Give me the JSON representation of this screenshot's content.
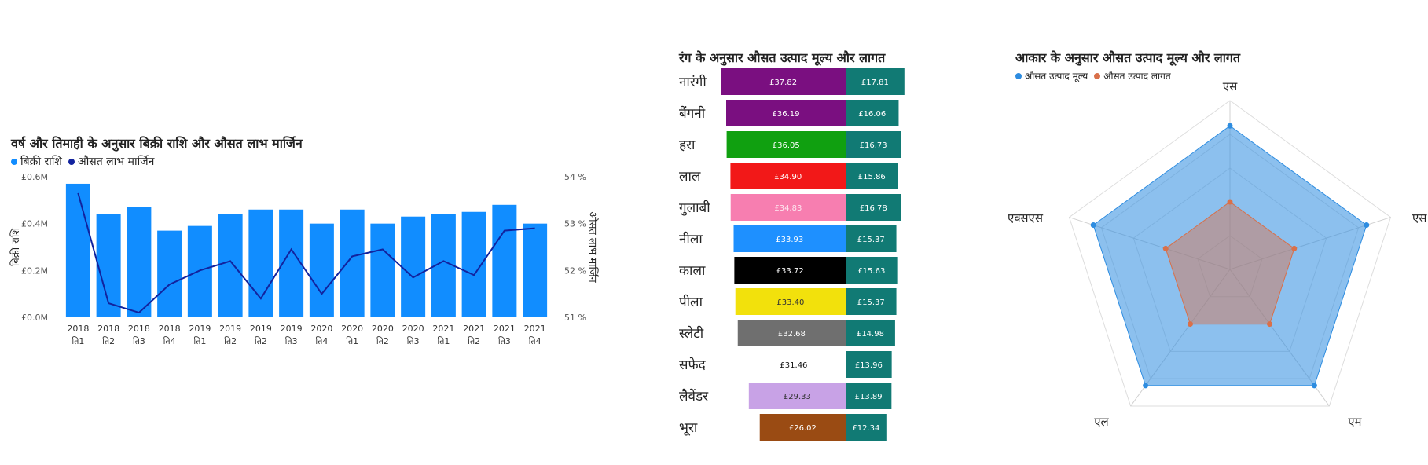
{
  "chart_data": [
    {
      "type": "bar",
      "title": "वर्ष और तिमाही के अनुसार बिक्री राशि और औसत लाभ मार्जिन",
      "legend": [
        "बिक्री राशि",
        "औसत लाभ मार्जिन"
      ],
      "legend_colors": [
        "#118DFF",
        "#12239E"
      ],
      "ylabel": "बिक्री राशि",
      "y2label": "औसत लाभ मार्जिन",
      "categories": [
        [
          "2018",
          "ति1"
        ],
        [
          "2018",
          "ति2"
        ],
        [
          "2018",
          "ति3"
        ],
        [
          "2018",
          "ति4"
        ],
        [
          "2019",
          "ति1"
        ],
        [
          "2019",
          "ति2"
        ],
        [
          "2019",
          "ति2"
        ],
        [
          "2019",
          "ति3"
        ],
        [
          "2020",
          "ति4"
        ],
        [
          "2020",
          "ति1"
        ],
        [
          "2020",
          "ति2"
        ],
        [
          "2020",
          "ति3"
        ],
        [
          "2021",
          "ति1"
        ],
        [
          "2021",
          "ति2"
        ],
        [
          "2021",
          "ति3"
        ],
        [
          "2021",
          "ति4"
        ]
      ],
      "series": [
        {
          "name": "बिक्री राशि",
          "type": "bar",
          "values": [
            0.57,
            0.44,
            0.47,
            0.37,
            0.39,
            0.44,
            0.46,
            0.46,
            0.4,
            0.46,
            0.4,
            0.43,
            0.44,
            0.45,
            0.48,
            0.4
          ]
        },
        {
          "name": "औसत लाभ मार्जिन",
          "type": "line",
          "axis": "right",
          "values": [
            53.65,
            51.3,
            51.1,
            51.7,
            52.0,
            52.2,
            51.4,
            52.45,
            51.5,
            52.3,
            52.45,
            51.85,
            52.2,
            51.9,
            52.85,
            52.9
          ]
        }
      ],
      "ylim": [
        0,
        0.6
      ],
      "yticks": [
        "£0.0M",
        "£0.2M",
        "£0.4M",
        "£0.6M"
      ],
      "y2lim": [
        51,
        54
      ],
      "y2ticks": [
        "51 %",
        "52 %",
        "53 %",
        "54 %"
      ]
    },
    {
      "type": "bar",
      "orientation": "horizontal-stacked",
      "title": "रंग के अनुसार औसत उत्पाद मूल्य और लागत",
      "categories": [
        "नारंगी",
        "बैंगनी",
        "हरा",
        "लाल",
        "गुलाबी",
        "नीला",
        "काला",
        "पीला",
        "स्लेटी",
        "सफेद",
        "लैवेंडर",
        "भूरा"
      ],
      "series": [
        {
          "values": [
            37.82,
            36.19,
            36.05,
            34.9,
            34.83,
            33.93,
            33.72,
            33.4,
            32.68,
            31.46,
            29.33,
            26.02
          ],
          "labels": [
            "£37.82",
            "£36.19",
            "£36.05",
            "£34.90",
            "£34.83",
            "£33.93",
            "£33.72",
            "£33.40",
            "£32.68",
            "£31.46",
            "£29.33",
            "£26.02"
          ],
          "colors": [
            "#7A0F80",
            "#7A0F80",
            "#10A010",
            "#F21818",
            "#F77EB0",
            "#1E90FF",
            "#000000",
            "#F2E10C",
            "#6F6F6F",
            "#FFFFFF",
            "#C8A2E6",
            "#9A4B13"
          ]
        },
        {
          "values": [
            17.81,
            16.06,
            16.73,
            15.86,
            16.78,
            15.37,
            15.63,
            15.37,
            14.98,
            13.96,
            13.89,
            12.34
          ],
          "labels": [
            "£17.81",
            "£16.06",
            "£16.73",
            "£15.86",
            "£16.78",
            "£15.37",
            "£15.63",
            "£15.37",
            "£14.98",
            "£13.96",
            "£13.89",
            "£12.34"
          ],
          "color": "#117A74"
        }
      ]
    },
    {
      "type": "radar",
      "title": "आकार के अनुसार औसत उत्पाद मूल्य और लागत",
      "legend": [
        "औसत उत्पाद मूल्य",
        "औसत उत्पाद लागत"
      ],
      "legend_colors": [
        "#2D8CE0",
        "#D9704A"
      ],
      "axes": [
        "एस",
        "एस",
        "एम",
        "एल",
        "एक्सएस"
      ],
      "series": [
        {
          "name": "औसत उत्पाद मूल्य",
          "values": [
            0.85,
            0.85,
            0.85,
            0.85,
            0.85
          ],
          "color": "#2D8CE0"
        },
        {
          "name": "औसत उत्पाद लागत",
          "values": [
            0.4,
            0.4,
            0.4,
            0.4,
            0.4
          ],
          "color": "#D9704A"
        }
      ],
      "rmax": 1
    }
  ]
}
